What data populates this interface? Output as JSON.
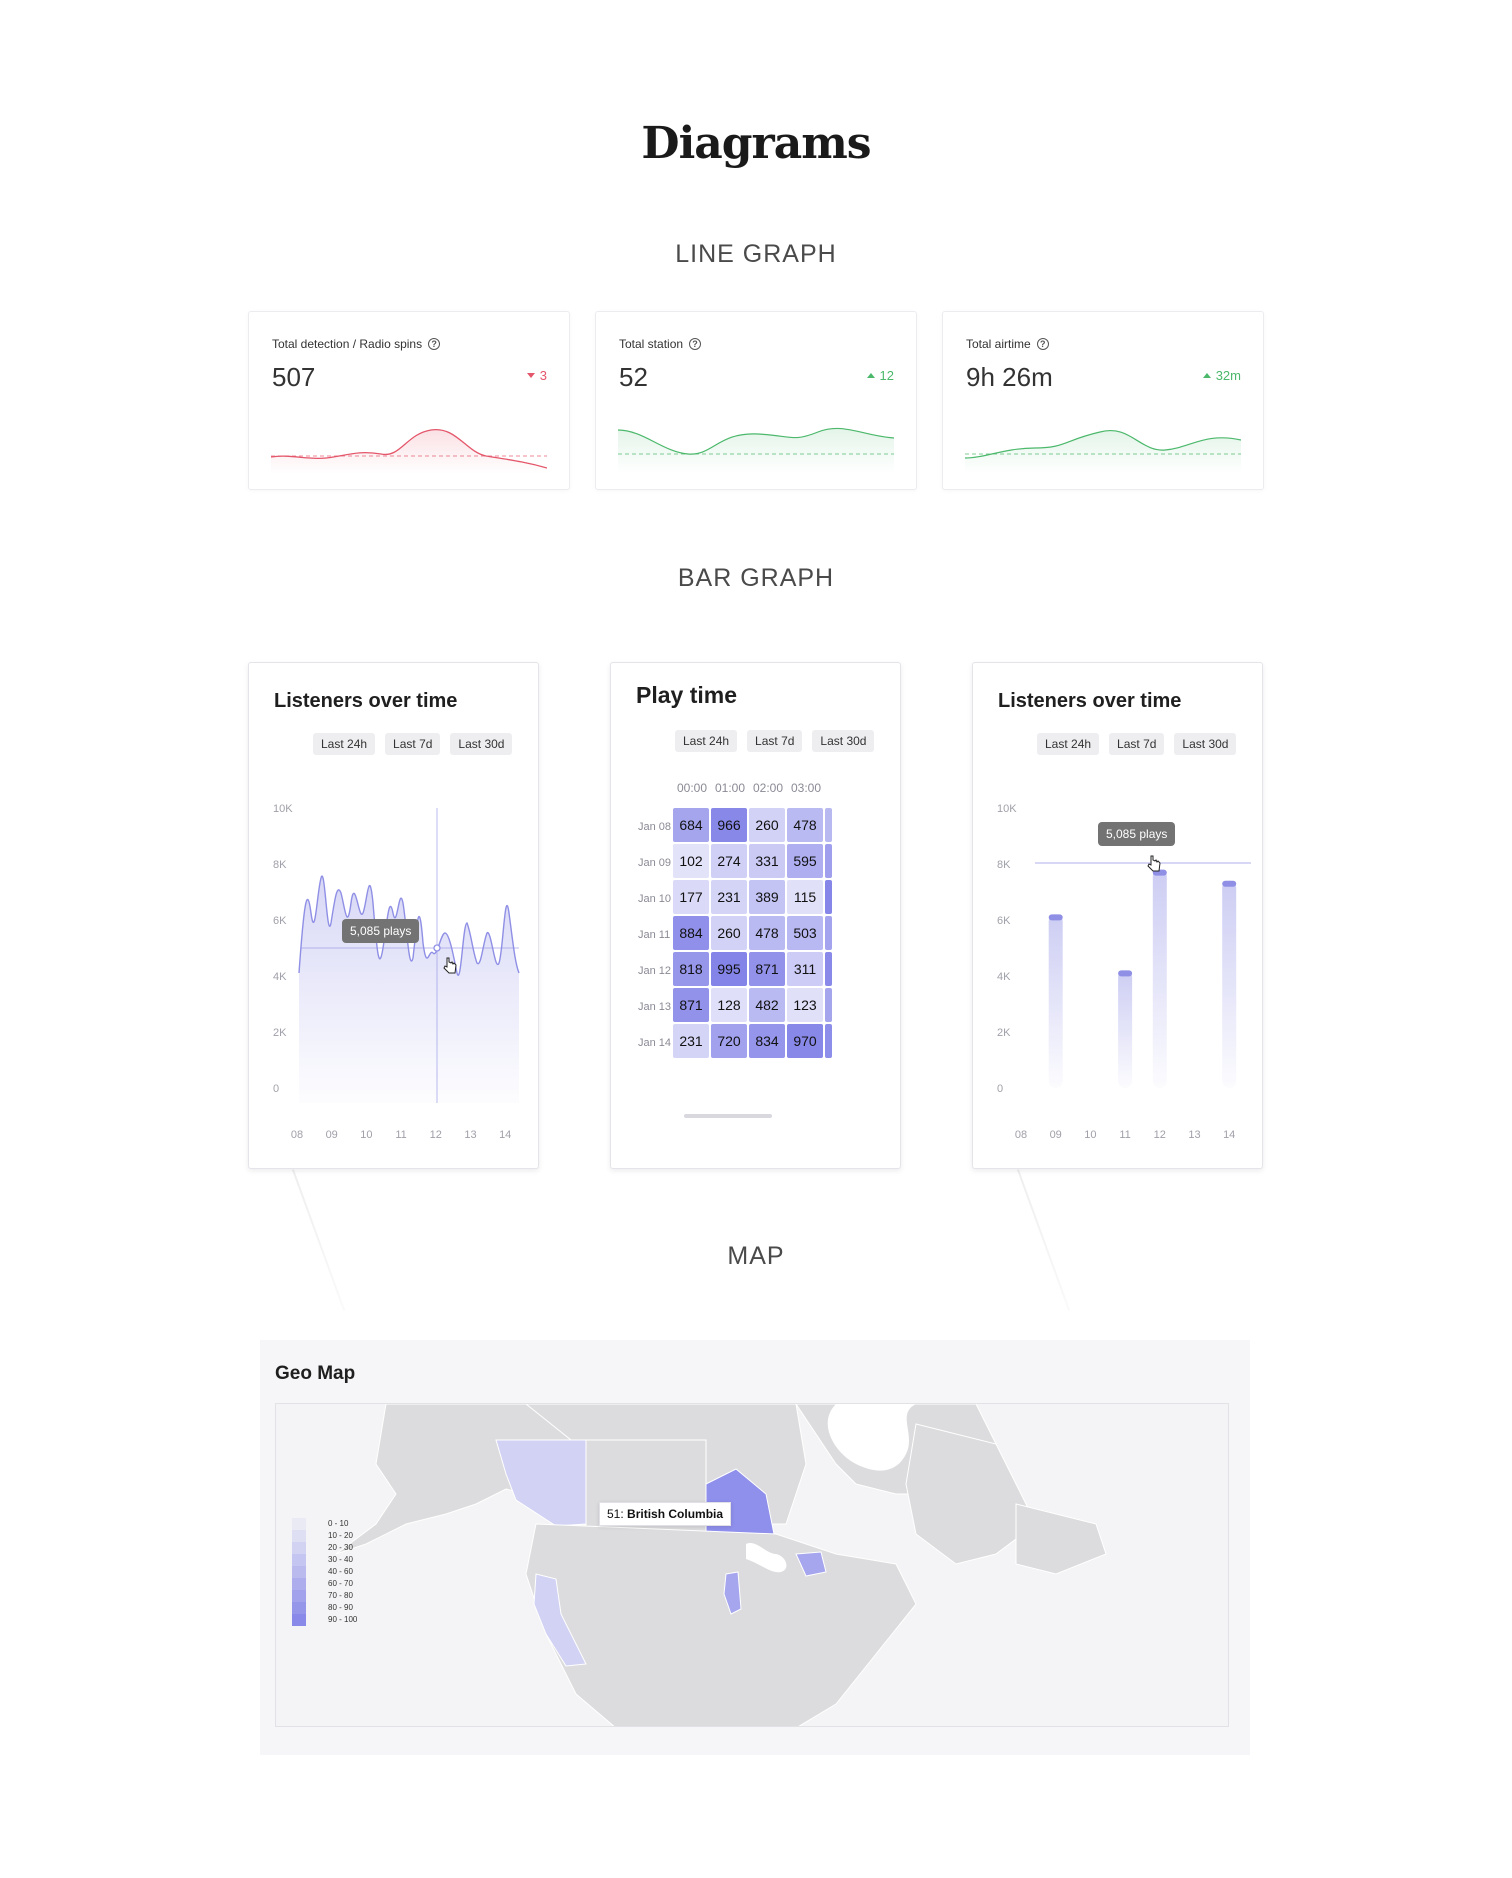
{
  "page": {
    "title": "Diagrams"
  },
  "sections": {
    "line": "LINE GRAPH",
    "bar": "BAR GRAPH",
    "map": "MAP"
  },
  "kpis": [
    {
      "label": "Total detection / Radio spins",
      "value": "507",
      "delta": "3",
      "direction": "down",
      "color": "#e4566a"
    },
    {
      "label": "Total station",
      "value": "52",
      "delta": "12",
      "direction": "up",
      "color": "#4bb86b"
    },
    {
      "label": "Total airtime",
      "value": "9h 26m",
      "delta": "32m",
      "direction": "up",
      "color": "#4bb86b"
    }
  ],
  "filters": [
    "Last 24h",
    "Last 7d",
    "Last 30d"
  ],
  "listeners_line": {
    "title": "Listeners over time",
    "tooltip": "5,085 plays",
    "y_ticks": [
      "10K",
      "8K",
      "6K",
      "4K",
      "2K",
      "0"
    ],
    "x_ticks": [
      "08",
      "09",
      "10",
      "11",
      "12",
      "13",
      "14"
    ],
    "accent": "#8f8fe6"
  },
  "play_time": {
    "title": "Play time",
    "columns": [
      "00:00",
      "01:00",
      "02:00",
      "03:00"
    ],
    "rows": [
      {
        "label": "Jan 08",
        "values": [
          684,
          966,
          260,
          478
        ]
      },
      {
        "label": "Jan 09",
        "values": [
          102,
          274,
          331,
          595
        ]
      },
      {
        "label": "Jan 10",
        "values": [
          177,
          231,
          389,
          115
        ]
      },
      {
        "label": "Jan 11",
        "values": [
          884,
          260,
          478,
          503
        ]
      },
      {
        "label": "Jan 12",
        "values": [
          818,
          995,
          871,
          311
        ]
      },
      {
        "label": "Jan 13",
        "values": [
          871,
          128,
          482,
          123
        ]
      },
      {
        "label": "Jan 14",
        "values": [
          231,
          720,
          834,
          970
        ]
      }
    ]
  },
  "listeners_bar": {
    "title": "Listeners over time",
    "tooltip": "5,085 plays",
    "y_ticks": [
      "10K",
      "8K",
      "6K",
      "4K",
      "2K",
      "0"
    ],
    "x_ticks": [
      "08",
      "09",
      "10",
      "11",
      "12",
      "13",
      "14"
    ],
    "bars": [
      {
        "x": "09",
        "value": 6200
      },
      {
        "x": "11",
        "value": 4200
      },
      {
        "x": "12",
        "value": 7800
      },
      {
        "x": "14",
        "value": 7400
      }
    ],
    "ymax": 10000
  },
  "geo_map": {
    "title": "Geo Map",
    "tooltip_value": "51:",
    "tooltip_region": "British Columbia",
    "legend": [
      "0 - 10",
      "10 - 20",
      "20 - 30",
      "30 - 40",
      "40 - 60",
      "60 - 70",
      "70 - 80",
      "80 - 90",
      "90 - 100"
    ]
  }
}
